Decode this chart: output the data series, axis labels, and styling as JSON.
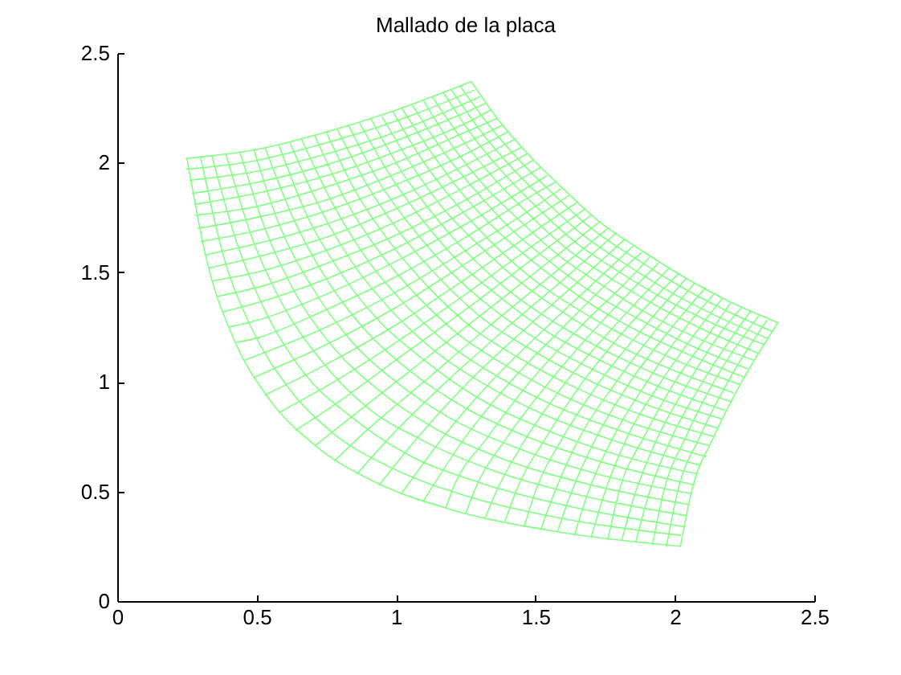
{
  "chart_data": {
    "type": "line",
    "title": "Mallado de la placa",
    "xlim": [
      0,
      2.5
    ],
    "ylim": [
      0,
      2.5
    ],
    "xticks": [
      0,
      0.5,
      1,
      1.5,
      2,
      2.5
    ],
    "yticks": [
      0,
      0.5,
      1,
      1.5,
      2,
      2.5
    ],
    "series": [
      {
        "color": "#80ff80",
        "x": [
          0.25,
          0.32,
          0.42,
          0.54,
          0.71,
          0.93,
          1.19,
          1.56,
          2.02
        ],
        "values": [
          2.02,
          1.56,
          1.19,
          0.93,
          0.71,
          0.54,
          0.42,
          0.32,
          0.25
        ]
      },
      {
        "color": "#80ff80",
        "x": [
          0.3,
          0.38,
          0.48,
          0.61,
          0.77,
          0.98,
          1.25,
          1.58,
          2.02
        ],
        "values": [
          2.02,
          1.58,
          1.25,
          0.98,
          0.77,
          0.61,
          0.48,
          0.38,
          0.3
        ]
      },
      {
        "color": "#80ff80",
        "x": [
          0.34,
          0.43,
          0.54,
          0.67,
          0.84,
          1.04,
          1.3,
          1.63,
          2.03
        ],
        "values": [
          2.03,
          1.63,
          1.3,
          1.04,
          0.84,
          0.67,
          0.54,
          0.43,
          0.34
        ]
      },
      {
        "color": "#80ff80",
        "x": [
          0.39,
          0.48,
          0.59,
          0.73,
          0.89,
          1.1,
          1.36,
          1.67,
          2.04
        ],
        "values": [
          2.04,
          1.67,
          1.36,
          1.1,
          0.89,
          0.73,
          0.59,
          0.48,
          0.39
        ]
      },
      {
        "color": "#80ff80",
        "x": [
          0.44,
          0.53,
          0.65,
          0.78,
          0.95,
          1.15,
          1.38,
          1.7,
          2.05
        ],
        "values": [
          2.05,
          1.7,
          1.38,
          1.15,
          0.95,
          0.78,
          0.65,
          0.53,
          0.44
        ]
      },
      {
        "color": "#80ff80",
        "x": [
          0.49,
          0.58,
          0.7,
          0.83,
          1.0,
          1.2,
          1.43,
          1.72,
          2.06
        ],
        "values": [
          2.06,
          1.72,
          1.43,
          1.2,
          1.0,
          0.83,
          0.7,
          0.58,
          0.49
        ]
      },
      {
        "color": "#80ff80",
        "x": [
          0.53,
          0.63,
          0.75,
          0.88,
          1.05,
          1.25,
          1.47,
          1.75,
          2.07
        ],
        "values": [
          2.07,
          1.75,
          1.47,
          1.25,
          1.05,
          0.88,
          0.75,
          0.63,
          0.53
        ]
      },
      {
        "color": "#80ff80",
        "x": [
          0.58,
          0.68,
          0.79,
          0.93,
          1.1,
          1.29,
          1.52,
          1.76,
          2.08
        ],
        "values": [
          2.08,
          1.76,
          1.52,
          1.29,
          1.1,
          0.93,
          0.79,
          0.68,
          0.58
        ]
      },
      {
        "color": "#80ff80",
        "x": [
          0.62,
          0.72,
          0.84,
          0.98,
          1.14,
          1.33,
          1.55,
          1.81,
          2.09
        ],
        "values": [
          2.09,
          1.81,
          1.55,
          1.33,
          1.14,
          0.98,
          0.84,
          0.72,
          0.62
        ]
      },
      {
        "color": "#80ff80",
        "x": [
          0.66,
          0.77,
          0.89,
          1.02,
          1.18,
          1.37,
          1.57,
          1.82,
          2.11
        ],
        "values": [
          2.11,
          1.82,
          1.57,
          1.37,
          1.18,
          1.02,
          0.89,
          0.77,
          0.66
        ]
      },
      {
        "color": "#80ff80",
        "x": [
          0.71,
          0.81,
          0.93,
          1.07,
          1.22,
          1.4,
          1.61,
          1.85,
          2.12
        ],
        "values": [
          2.12,
          1.85,
          1.61,
          1.4,
          1.22,
          1.07,
          0.93,
          0.81,
          0.71
        ]
      },
      {
        "color": "#80ff80",
        "x": [
          0.75,
          0.85,
          0.97,
          1.11,
          1.26,
          1.44,
          1.65,
          1.88,
          2.14
        ],
        "values": [
          2.14,
          1.88,
          1.65,
          1.44,
          1.26,
          1.11,
          0.97,
          0.85,
          0.75
        ]
      },
      {
        "color": "#80ff80",
        "x": [
          0.79,
          0.9,
          1.02,
          1.15,
          1.3,
          1.48,
          1.67,
          1.89,
          2.15
        ],
        "values": [
          2.15,
          1.89,
          1.67,
          1.48,
          1.3,
          1.15,
          1.02,
          0.9,
          0.79
        ]
      },
      {
        "color": "#80ff80",
        "x": [
          0.83,
          0.94,
          1.06,
          1.19,
          1.34,
          1.51,
          1.7,
          1.91,
          2.17
        ],
        "values": [
          2.17,
          1.91,
          1.7,
          1.51,
          1.34,
          1.19,
          1.06,
          0.94,
          0.83
        ]
      },
      {
        "color": "#80ff80",
        "x": [
          0.87,
          0.98,
          1.1,
          1.23,
          1.38,
          1.54,
          1.73,
          1.94,
          2.18
        ],
        "values": [
          2.18,
          1.94,
          1.73,
          1.54,
          1.38,
          1.23,
          1.1,
          0.98,
          0.87
        ]
      },
      {
        "color": "#80ff80",
        "x": [
          0.91,
          1.02,
          1.13,
          1.27,
          1.41,
          1.57,
          1.77,
          1.96,
          2.2
        ],
        "values": [
          2.2,
          1.96,
          1.77,
          1.57,
          1.41,
          1.27,
          1.13,
          1.02,
          0.91
        ]
      },
      {
        "color": "#80ff80",
        "x": [
          0.95,
          1.05,
          1.17,
          1.3,
          1.45,
          1.62,
          1.79,
          2.0,
          2.21
        ],
        "values": [
          2.21,
          2.0,
          1.79,
          1.62,
          1.45,
          1.3,
          1.17,
          1.05,
          0.95
        ]
      },
      {
        "color": "#80ff80",
        "x": [
          0.99,
          1.09,
          1.21,
          1.34,
          1.48,
          1.64,
          1.82,
          2.02,
          2.23
        ],
        "values": [
          2.23,
          2.02,
          1.82,
          1.64,
          1.48,
          1.34,
          1.21,
          1.09,
          0.99
        ]
      },
      {
        "color": "#80ff80",
        "x": [
          1.02,
          1.13,
          1.25,
          1.37,
          1.52,
          1.68,
          1.84,
          2.04,
          2.25
        ],
        "values": [
          2.25,
          2.04,
          1.84,
          1.68,
          1.52,
          1.37,
          1.25,
          1.13,
          1.02
        ]
      },
      {
        "color": "#80ff80",
        "x": [
          1.06,
          1.17,
          1.28,
          1.41,
          1.55,
          1.7,
          1.88,
          2.05,
          2.26
        ],
        "values": [
          2.26,
          2.05,
          1.88,
          1.7,
          1.55,
          1.41,
          1.28,
          1.17,
          1.06
        ]
      },
      {
        "color": "#80ff80",
        "x": [
          1.1,
          1.2,
          1.32,
          1.44,
          1.58,
          1.74,
          1.89,
          2.08,
          2.28
        ],
        "values": [
          2.28,
          2.08,
          1.89,
          1.74,
          1.58,
          1.44,
          1.32,
          1.2,
          1.1
        ]
      },
      {
        "color": "#80ff80",
        "x": [
          1.13,
          1.24,
          1.35,
          1.48,
          1.61,
          1.76,
          1.93,
          2.1,
          2.3
        ],
        "values": [
          2.3,
          2.1,
          1.93,
          1.76,
          1.61,
          1.48,
          1.35,
          1.24,
          1.13
        ]
      },
      {
        "color": "#80ff80",
        "x": [
          1.17,
          1.27,
          1.38,
          1.51,
          1.64,
          1.79,
          1.96,
          2.13,
          2.32
        ],
        "values": [
          2.32,
          2.13,
          1.96,
          1.79,
          1.64,
          1.51,
          1.38,
          1.27,
          1.17
        ]
      },
      {
        "color": "#80ff80",
        "x": [
          1.2,
          1.3,
          1.42,
          1.54,
          1.67,
          1.82,
          1.97,
          2.15,
          2.33
        ],
        "values": [
          2.33,
          2.15,
          1.97,
          1.82,
          1.67,
          1.54,
          1.42,
          1.3,
          1.2
        ]
      },
      {
        "color": "#80ff80",
        "x": [
          1.23,
          1.34,
          1.45,
          1.57,
          1.7,
          1.85,
          2.0,
          2.16,
          2.35
        ],
        "values": [
          2.35,
          2.16,
          2.0,
          1.85,
          1.7,
          1.57,
          1.45,
          1.34,
          1.23
        ]
      },
      {
        "color": "#80ff80",
        "x": [
          1.27,
          1.37,
          1.48,
          1.6,
          1.73,
          1.88,
          2.03,
          2.19,
          2.37
        ],
        "values": [
          2.37,
          2.19,
          2.03,
          1.88,
          1.73,
          1.6,
          1.48,
          1.37,
          1.27
        ]
      },
      {
        "color": "#80ff80",
        "x": [
          0.25,
          0.5,
          0.75,
          1.0,
          1.27
        ],
        "values": [
          2.02,
          2.06,
          2.14,
          2.24,
          2.37
        ]
      },
      {
        "color": "#80ff80",
        "x": [
          0.25,
          0.5,
          0.75,
          1.0,
          1.28
        ],
        "values": [
          1.97,
          2.01,
          2.09,
          2.19,
          2.33
        ]
      },
      {
        "color": "#80ff80",
        "x": [
          0.26,
          0.5,
          0.75,
          1.0,
          1.3
        ],
        "values": [
          1.92,
          1.96,
          2.04,
          2.14,
          2.3
        ]
      },
      {
        "color": "#80ff80",
        "x": [
          0.27,
          0.5,
          0.75,
          1.0,
          1.25,
          1.32
        ],
        "values": [
          1.86,
          1.91,
          1.99,
          2.1,
          2.23,
          2.27
        ]
      },
      {
        "color": "#80ff80",
        "x": [
          0.28,
          0.5,
          0.75,
          1.0,
          1.25,
          1.34
        ],
        "values": [
          1.81,
          1.86,
          1.94,
          2.05,
          2.18,
          2.24
        ]
      },
      {
        "color": "#80ff80",
        "x": [
          0.28,
          0.5,
          0.75,
          1.0,
          1.25,
          1.36
        ],
        "values": [
          1.76,
          1.8,
          1.89,
          2.0,
          2.14,
          2.2
        ]
      },
      {
        "color": "#80ff80",
        "x": [
          0.29,
          0.5,
          0.75,
          1.0,
          1.25,
          1.38
        ],
        "values": [
          1.7,
          1.75,
          1.83,
          1.95,
          2.09,
          2.17
        ]
      },
      {
        "color": "#80ff80",
        "x": [
          0.3,
          0.5,
          0.75,
          1.0,
          1.25,
          1.4
        ],
        "values": [
          1.64,
          1.69,
          1.78,
          1.9,
          2.04,
          2.14
        ]
      },
      {
        "color": "#80ff80",
        "x": [
          0.32,
          0.5,
          0.75,
          1.0,
          1.25,
          1.43
        ],
        "values": [
          1.58,
          1.63,
          1.72,
          1.84,
          1.99,
          2.11
        ]
      },
      {
        "color": "#80ff80",
        "x": [
          0.33,
          0.5,
          0.75,
          1.0,
          1.25,
          1.45
        ],
        "values": [
          1.52,
          1.57,
          1.66,
          1.79,
          1.94,
          2.07
        ]
      },
      {
        "color": "#80ff80",
        "x": [
          0.34,
          0.5,
          0.75,
          1.0,
          1.25,
          1.47
        ],
        "values": [
          1.46,
          1.5,
          1.6,
          1.73,
          1.89,
          2.04
        ]
      },
      {
        "color": "#80ff80",
        "x": [
          0.36,
          0.5,
          0.75,
          1.0,
          1.25,
          1.49
        ],
        "values": [
          1.39,
          1.43,
          1.54,
          1.67,
          1.83,
          2.01
        ]
      },
      {
        "color": "#80ff80",
        "x": [
          0.38,
          0.5,
          0.75,
          1.0,
          1.25,
          1.52
        ],
        "values": [
          1.32,
          1.36,
          1.47,
          1.61,
          1.78,
          1.98
        ]
      },
      {
        "color": "#80ff80",
        "x": [
          0.4,
          0.5,
          0.75,
          1.0,
          1.25,
          1.54
        ],
        "values": [
          1.25,
          1.28,
          1.4,
          1.55,
          1.72,
          1.94
        ]
      },
      {
        "color": "#80ff80",
        "x": [
          0.43,
          0.5,
          0.75,
          1.0,
          1.25,
          1.5,
          1.57
        ],
        "values": [
          1.18,
          1.2,
          1.33,
          1.48,
          1.66,
          1.86,
          1.91
        ]
      },
      {
        "color": "#80ff80",
        "x": [
          0.46,
          0.75,
          1.0,
          1.25,
          1.5,
          1.59
        ],
        "values": [
          1.1,
          1.25,
          1.41,
          1.6,
          1.8,
          1.88
        ]
      },
      {
        "color": "#80ff80",
        "x": [
          0.49,
          0.75,
          1.0,
          1.25,
          1.5,
          1.62
        ],
        "values": [
          1.02,
          1.17,
          1.34,
          1.54,
          1.75,
          1.85
        ]
      },
      {
        "color": "#80ff80",
        "x": [
          0.53,
          0.75,
          1.0,
          1.25,
          1.5,
          1.65
        ],
        "values": [
          0.94,
          1.08,
          1.26,
          1.47,
          1.69,
          1.82
        ]
      },
      {
        "color": "#80ff80",
        "x": [
          0.58,
          0.75,
          1.0,
          1.25,
          1.5,
          1.68
        ],
        "values": [
          0.86,
          0.98,
          1.18,
          1.4,
          1.63,
          1.79
        ]
      },
      {
        "color": "#80ff80",
        "x": [
          0.64,
          0.75,
          1.0,
          1.25,
          1.5,
          1.7
        ],
        "values": [
          0.78,
          0.87,
          1.1,
          1.33,
          1.57,
          1.76
        ]
      },
      {
        "color": "#80ff80",
        "x": [
          0.71,
          1.73
        ],
        "values": [
          0.71,
          1.73
        ]
      },
      {
        "color": "#80ff80",
        "x": [
          0.78,
          0.87,
          1.1,
          1.33,
          1.57,
          1.76
        ],
        "values": [
          0.64,
          0.75,
          1.0,
          1.25,
          1.5,
          1.7
        ]
      },
      {
        "color": "#80ff80",
        "x": [
          0.86,
          0.98,
          1.18,
          1.4,
          1.63,
          1.79
        ],
        "values": [
          0.58,
          0.75,
          1.0,
          1.25,
          1.5,
          1.68
        ]
      },
      {
        "color": "#80ff80",
        "x": [
          0.94,
          1.08,
          1.26,
          1.47,
          1.69,
          1.82
        ],
        "values": [
          0.53,
          0.75,
          1.0,
          1.25,
          1.5,
          1.65
        ]
      },
      {
        "color": "#80ff80",
        "x": [
          1.02,
          1.17,
          1.34,
          1.54,
          1.75,
          1.85
        ],
        "values": [
          0.49,
          0.75,
          1.0,
          1.25,
          1.5,
          1.62
        ]
      },
      {
        "color": "#80ff80",
        "x": [
          1.1,
          1.25,
          1.41,
          1.6,
          1.8,
          1.88
        ],
        "values": [
          0.46,
          0.75,
          1.0,
          1.25,
          1.5,
          1.59
        ]
      },
      {
        "color": "#80ff80",
        "x": [
          1.18,
          1.2,
          1.33,
          1.48,
          1.66,
          1.86,
          1.91
        ],
        "values": [
          0.43,
          0.5,
          0.75,
          1.0,
          1.25,
          1.5,
          1.57
        ]
      },
      {
        "color": "#80ff80",
        "x": [
          1.25,
          1.28,
          1.4,
          1.55,
          1.72,
          1.94
        ],
        "values": [
          0.4,
          0.5,
          0.75,
          1.0,
          1.25,
          1.54
        ]
      },
      {
        "color": "#80ff80",
        "x": [
          1.32,
          1.36,
          1.47,
          1.61,
          1.78,
          1.98
        ],
        "values": [
          0.38,
          0.5,
          0.75,
          1.0,
          1.25,
          1.52
        ]
      },
      {
        "color": "#80ff80",
        "x": [
          1.39,
          1.43,
          1.54,
          1.67,
          1.83,
          2.01
        ],
        "values": [
          0.36,
          0.5,
          0.75,
          1.0,
          1.25,
          1.49
        ]
      },
      {
        "color": "#80ff80",
        "x": [
          1.46,
          1.5,
          1.6,
          1.73,
          1.89,
          2.04
        ],
        "values": [
          0.34,
          0.5,
          0.75,
          1.0,
          1.25,
          1.47
        ]
      },
      {
        "color": "#80ff80",
        "x": [
          1.52,
          1.57,
          1.66,
          1.79,
          1.94,
          2.07
        ],
        "values": [
          0.33,
          0.5,
          0.75,
          1.0,
          1.25,
          1.45
        ]
      },
      {
        "color": "#80ff80",
        "x": [
          1.58,
          1.63,
          1.72,
          1.84,
          1.99,
          2.11
        ],
        "values": [
          0.32,
          0.5,
          0.75,
          1.0,
          1.25,
          1.43
        ]
      },
      {
        "color": "#80ff80",
        "x": [
          1.64,
          1.69,
          1.78,
          1.9,
          2.04,
          2.14
        ],
        "values": [
          0.3,
          0.5,
          0.75,
          1.0,
          1.25,
          1.4
        ]
      },
      {
        "color": "#80ff80",
        "x": [
          1.7,
          1.75,
          1.83,
          1.95,
          2.09,
          2.17
        ],
        "values": [
          0.29,
          0.5,
          0.75,
          1.0,
          1.25,
          1.38
        ]
      },
      {
        "color": "#80ff80",
        "x": [
          1.76,
          1.8,
          1.89,
          2.0,
          2.14,
          2.2
        ],
        "values": [
          0.28,
          0.5,
          0.75,
          1.0,
          1.25,
          1.36
        ]
      },
      {
        "color": "#80ff80",
        "x": [
          1.81,
          1.86,
          1.94,
          2.05,
          2.18,
          2.24
        ],
        "values": [
          0.28,
          0.5,
          0.75,
          1.0,
          1.25,
          1.34
        ]
      },
      {
        "color": "#80ff80",
        "x": [
          1.86,
          1.91,
          1.99,
          2.1,
          2.23,
          2.27
        ],
        "values": [
          0.27,
          0.5,
          0.75,
          1.0,
          1.25,
          1.32
        ]
      },
      {
        "color": "#80ff80",
        "x": [
          1.92,
          1.96,
          2.04,
          2.14,
          2.3
        ],
        "values": [
          0.26,
          0.5,
          0.75,
          1.0,
          1.3
        ]
      },
      {
        "color": "#80ff80",
        "x": [
          1.97,
          2.01,
          2.09,
          2.19,
          2.33
        ],
        "values": [
          0.25,
          0.5,
          0.75,
          1.0,
          1.28
        ]
      },
      {
        "color": "#80ff80",
        "x": [
          2.02,
          2.06,
          2.14,
          2.24,
          2.37
        ],
        "values": [
          0.25,
          0.5,
          0.75,
          1.0,
          1.27
        ]
      }
    ]
  }
}
